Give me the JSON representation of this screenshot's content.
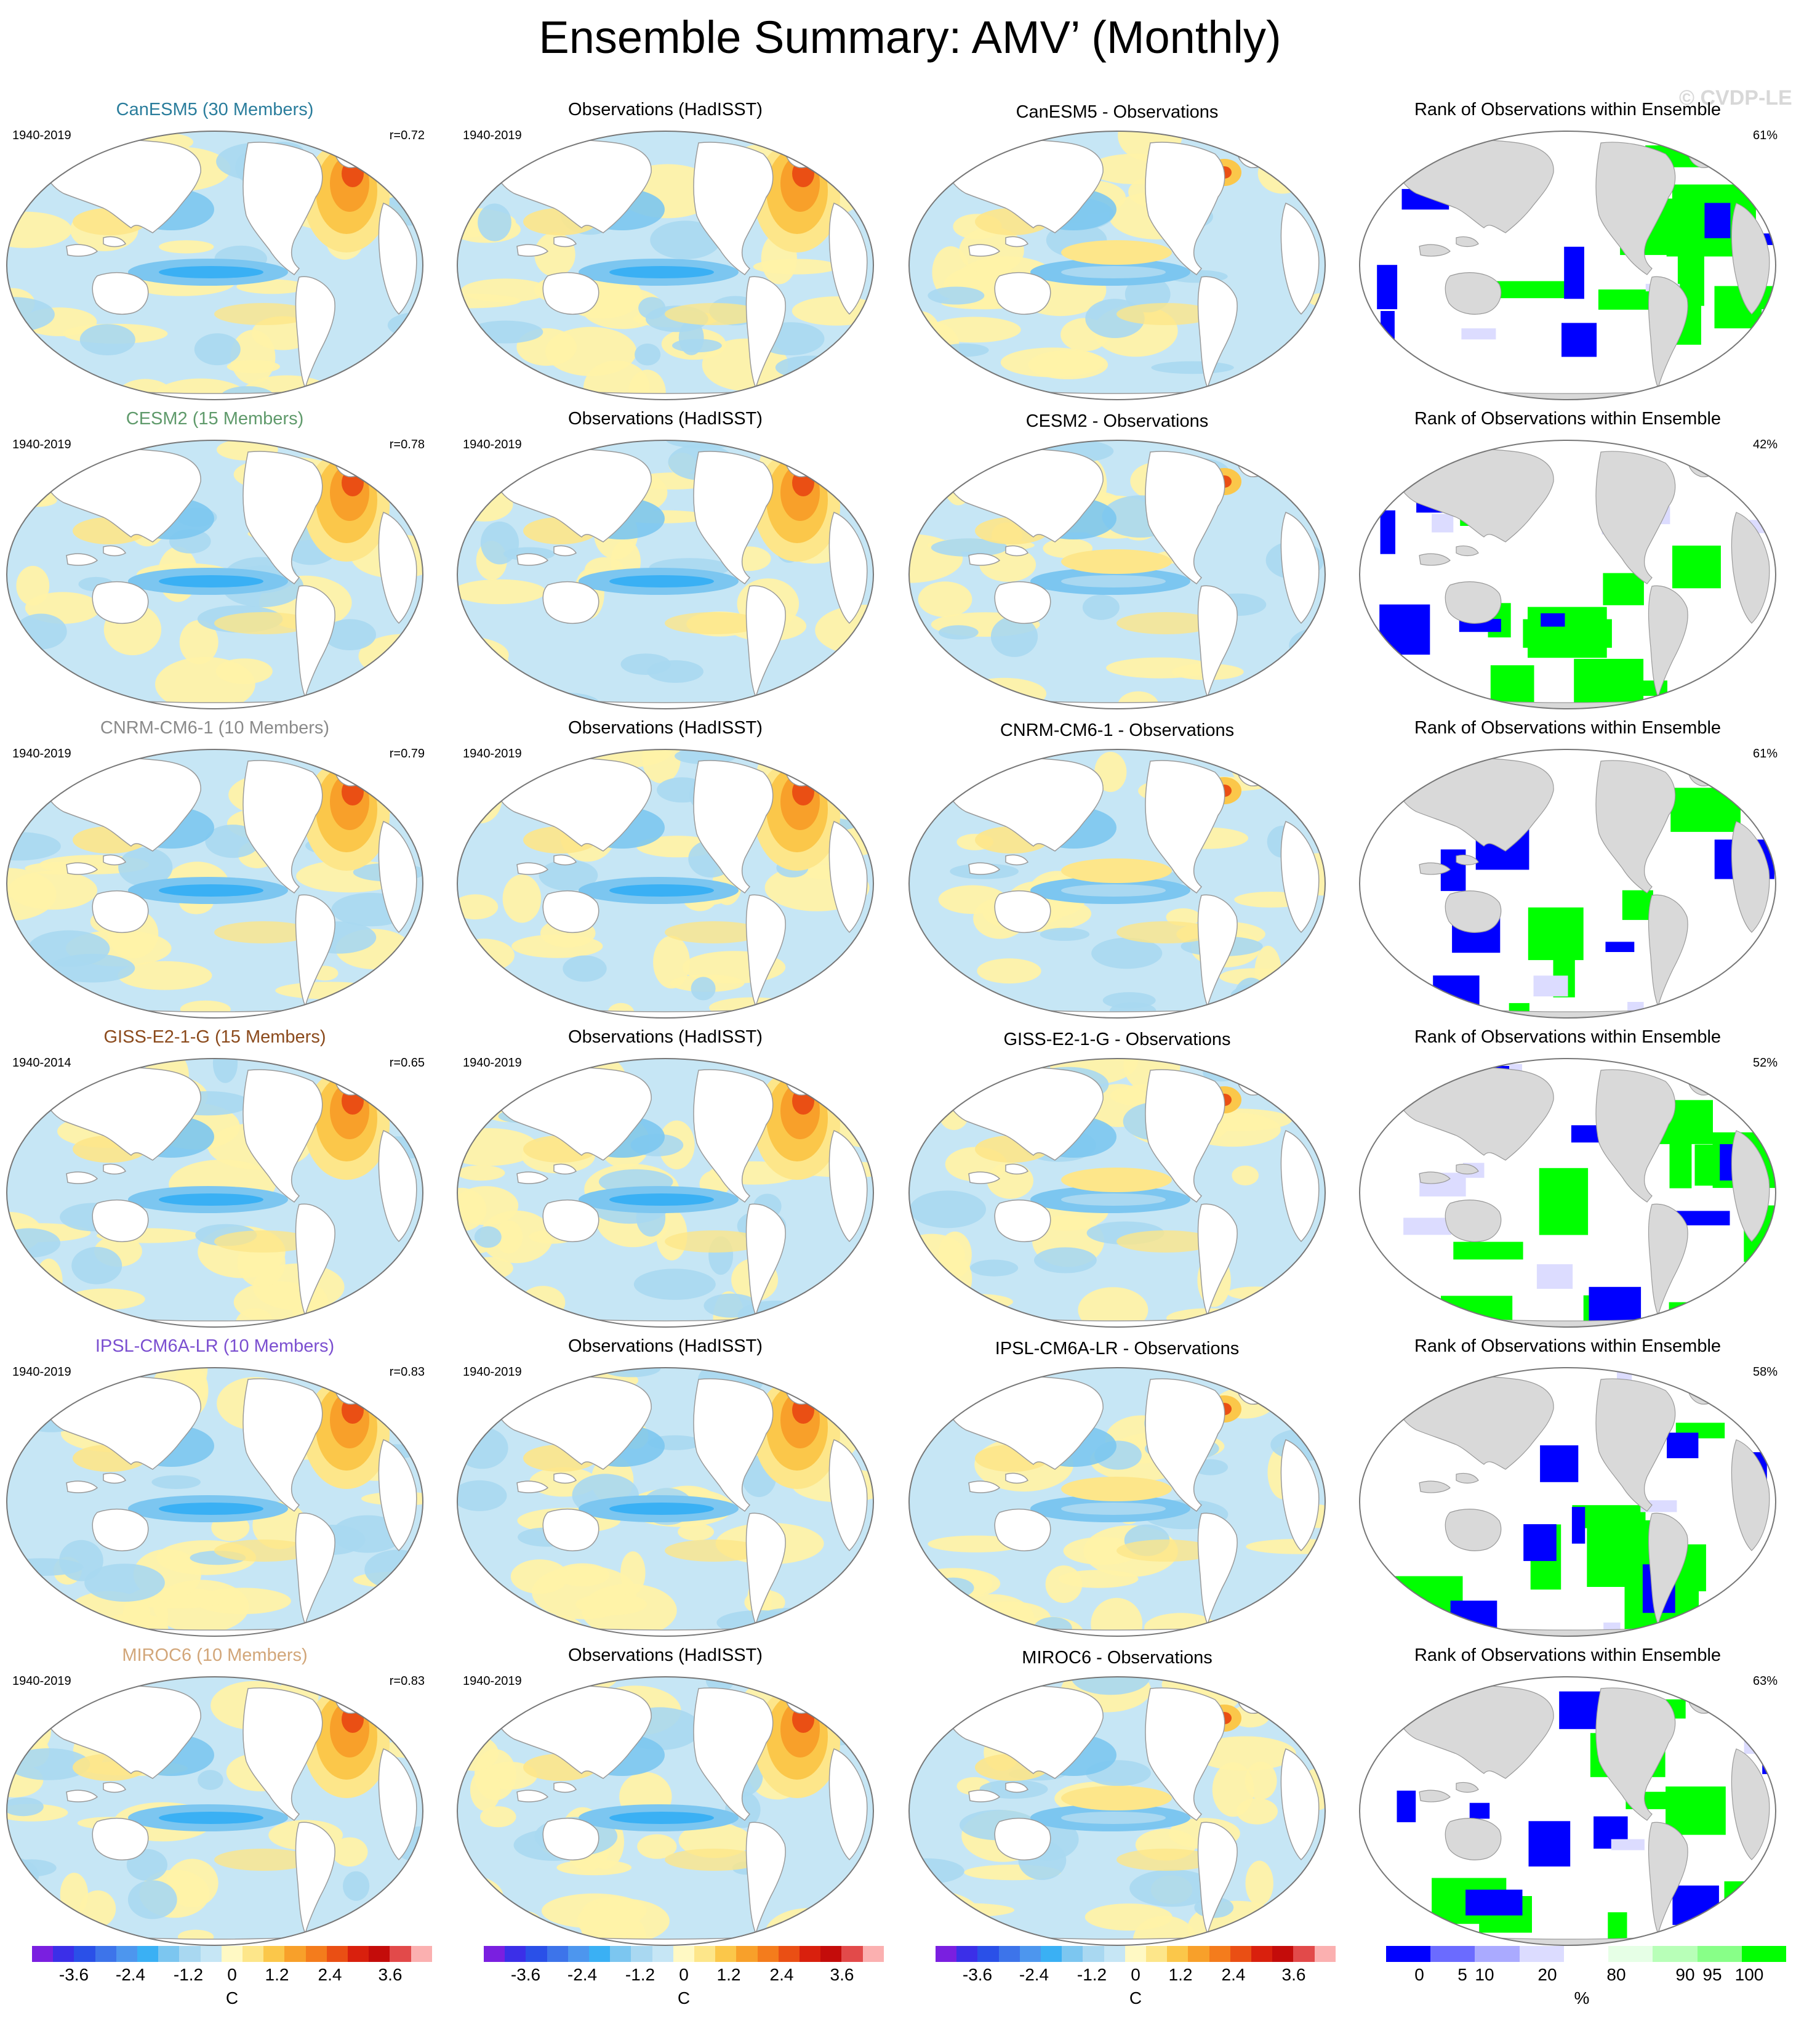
{
  "title": "Ensemble Summary: AMV’ (Monthly)",
  "watermark": "© CVDP-LE",
  "colors": {
    "land": "#ffffff",
    "land_rank": "#d9d9d9",
    "coast": "#9a9a9a",
    "model_colors": [
      "#2a7d9c",
      "#5f9a6b",
      "#8a8a8a",
      "#8b4a1c",
      "#7b4fd0",
      "#d2a679"
    ]
  },
  "rows": [
    {
      "model_title": "CanESM5 (30 Members)",
      "model_period": "1940-2019",
      "r_value": "r=0.72",
      "obs_title": "Observations (HadISST)",
      "obs_period": "1940-2019",
      "diff_title": "CanESM5 - Observations",
      "rank_title": "Rank of Observations within Ensemble",
      "rank_pct": "61%"
    },
    {
      "model_title": "CESM2 (15 Members)",
      "model_period": "1940-2019",
      "r_value": "r=0.78",
      "obs_title": "Observations (HadISST)",
      "obs_period": "1940-2019",
      "diff_title": "CESM2 - Observations",
      "rank_title": "Rank of Observations within Ensemble",
      "rank_pct": "42%"
    },
    {
      "model_title": "CNRM-CM6-1 (10 Members)",
      "model_period": "1940-2019",
      "r_value": "r=0.79",
      "obs_title": "Observations (HadISST)",
      "obs_period": "1940-2019",
      "diff_title": "CNRM-CM6-1 - Observations",
      "rank_title": "Rank of Observations within Ensemble",
      "rank_pct": "61%"
    },
    {
      "model_title": "GISS-E2-1-G (15 Members)",
      "model_period": "1940-2014",
      "r_value": "r=0.65",
      "obs_title": "Observations (HadISST)",
      "obs_period": "1940-2019",
      "diff_title": "GISS-E2-1-G - Observations",
      "rank_title": "Rank of Observations within Ensemble",
      "rank_pct": "52%"
    },
    {
      "model_title": "IPSL-CM6A-LR (10 Members)",
      "model_period": "1940-2019",
      "r_value": "r=0.83",
      "obs_title": "Observations (HadISST)",
      "obs_period": "1940-2019",
      "diff_title": "IPSL-CM6A-LR - Observations",
      "rank_title": "Rank of Observations within Ensemble",
      "rank_pct": "58%"
    },
    {
      "model_title": "MIROC6 (10 Members)",
      "model_period": "1940-2019",
      "r_value": "r=0.83",
      "obs_title": "Observations (HadISST)",
      "obs_period": "1940-2019",
      "diff_title": "MIROC6 - Observations",
      "rank_title": "Rank of Observations within Ensemble",
      "rank_pct": "63%"
    }
  ],
  "sst_colorbar": {
    "colors": [
      "#7a1fe0",
      "#3b2fe8",
      "#2a50e8",
      "#3d74ea",
      "#4d96ee",
      "#3ab0f4",
      "#7cc6f0",
      "#a9d8f1",
      "#c6e6f5",
      "#fff9c4",
      "#fde68a",
      "#fbc74a",
      "#f8a02a",
      "#f47c1c",
      "#ea4f14",
      "#d9200d",
      "#c40c0a",
      "#e24a4a",
      "#fbb0b0"
    ],
    "ticks": [
      "-3.6",
      "-2.4",
      "-1.2",
      "0",
      "1.2",
      "2.4",
      "3.6"
    ],
    "unit": "C"
  },
  "rank_colorbar": {
    "colors": [
      "#0000ff",
      "#6b6bff",
      "#aaaaff",
      "#dcdcff",
      "#ffffff",
      "#e6ffe6",
      "#b8ffb8",
      "#88ff88",
      "#00ff00"
    ],
    "ticks": [
      "0",
      "5",
      "10",
      "20",
      "80",
      "90",
      "95",
      "100"
    ],
    "unit": "%"
  }
}
